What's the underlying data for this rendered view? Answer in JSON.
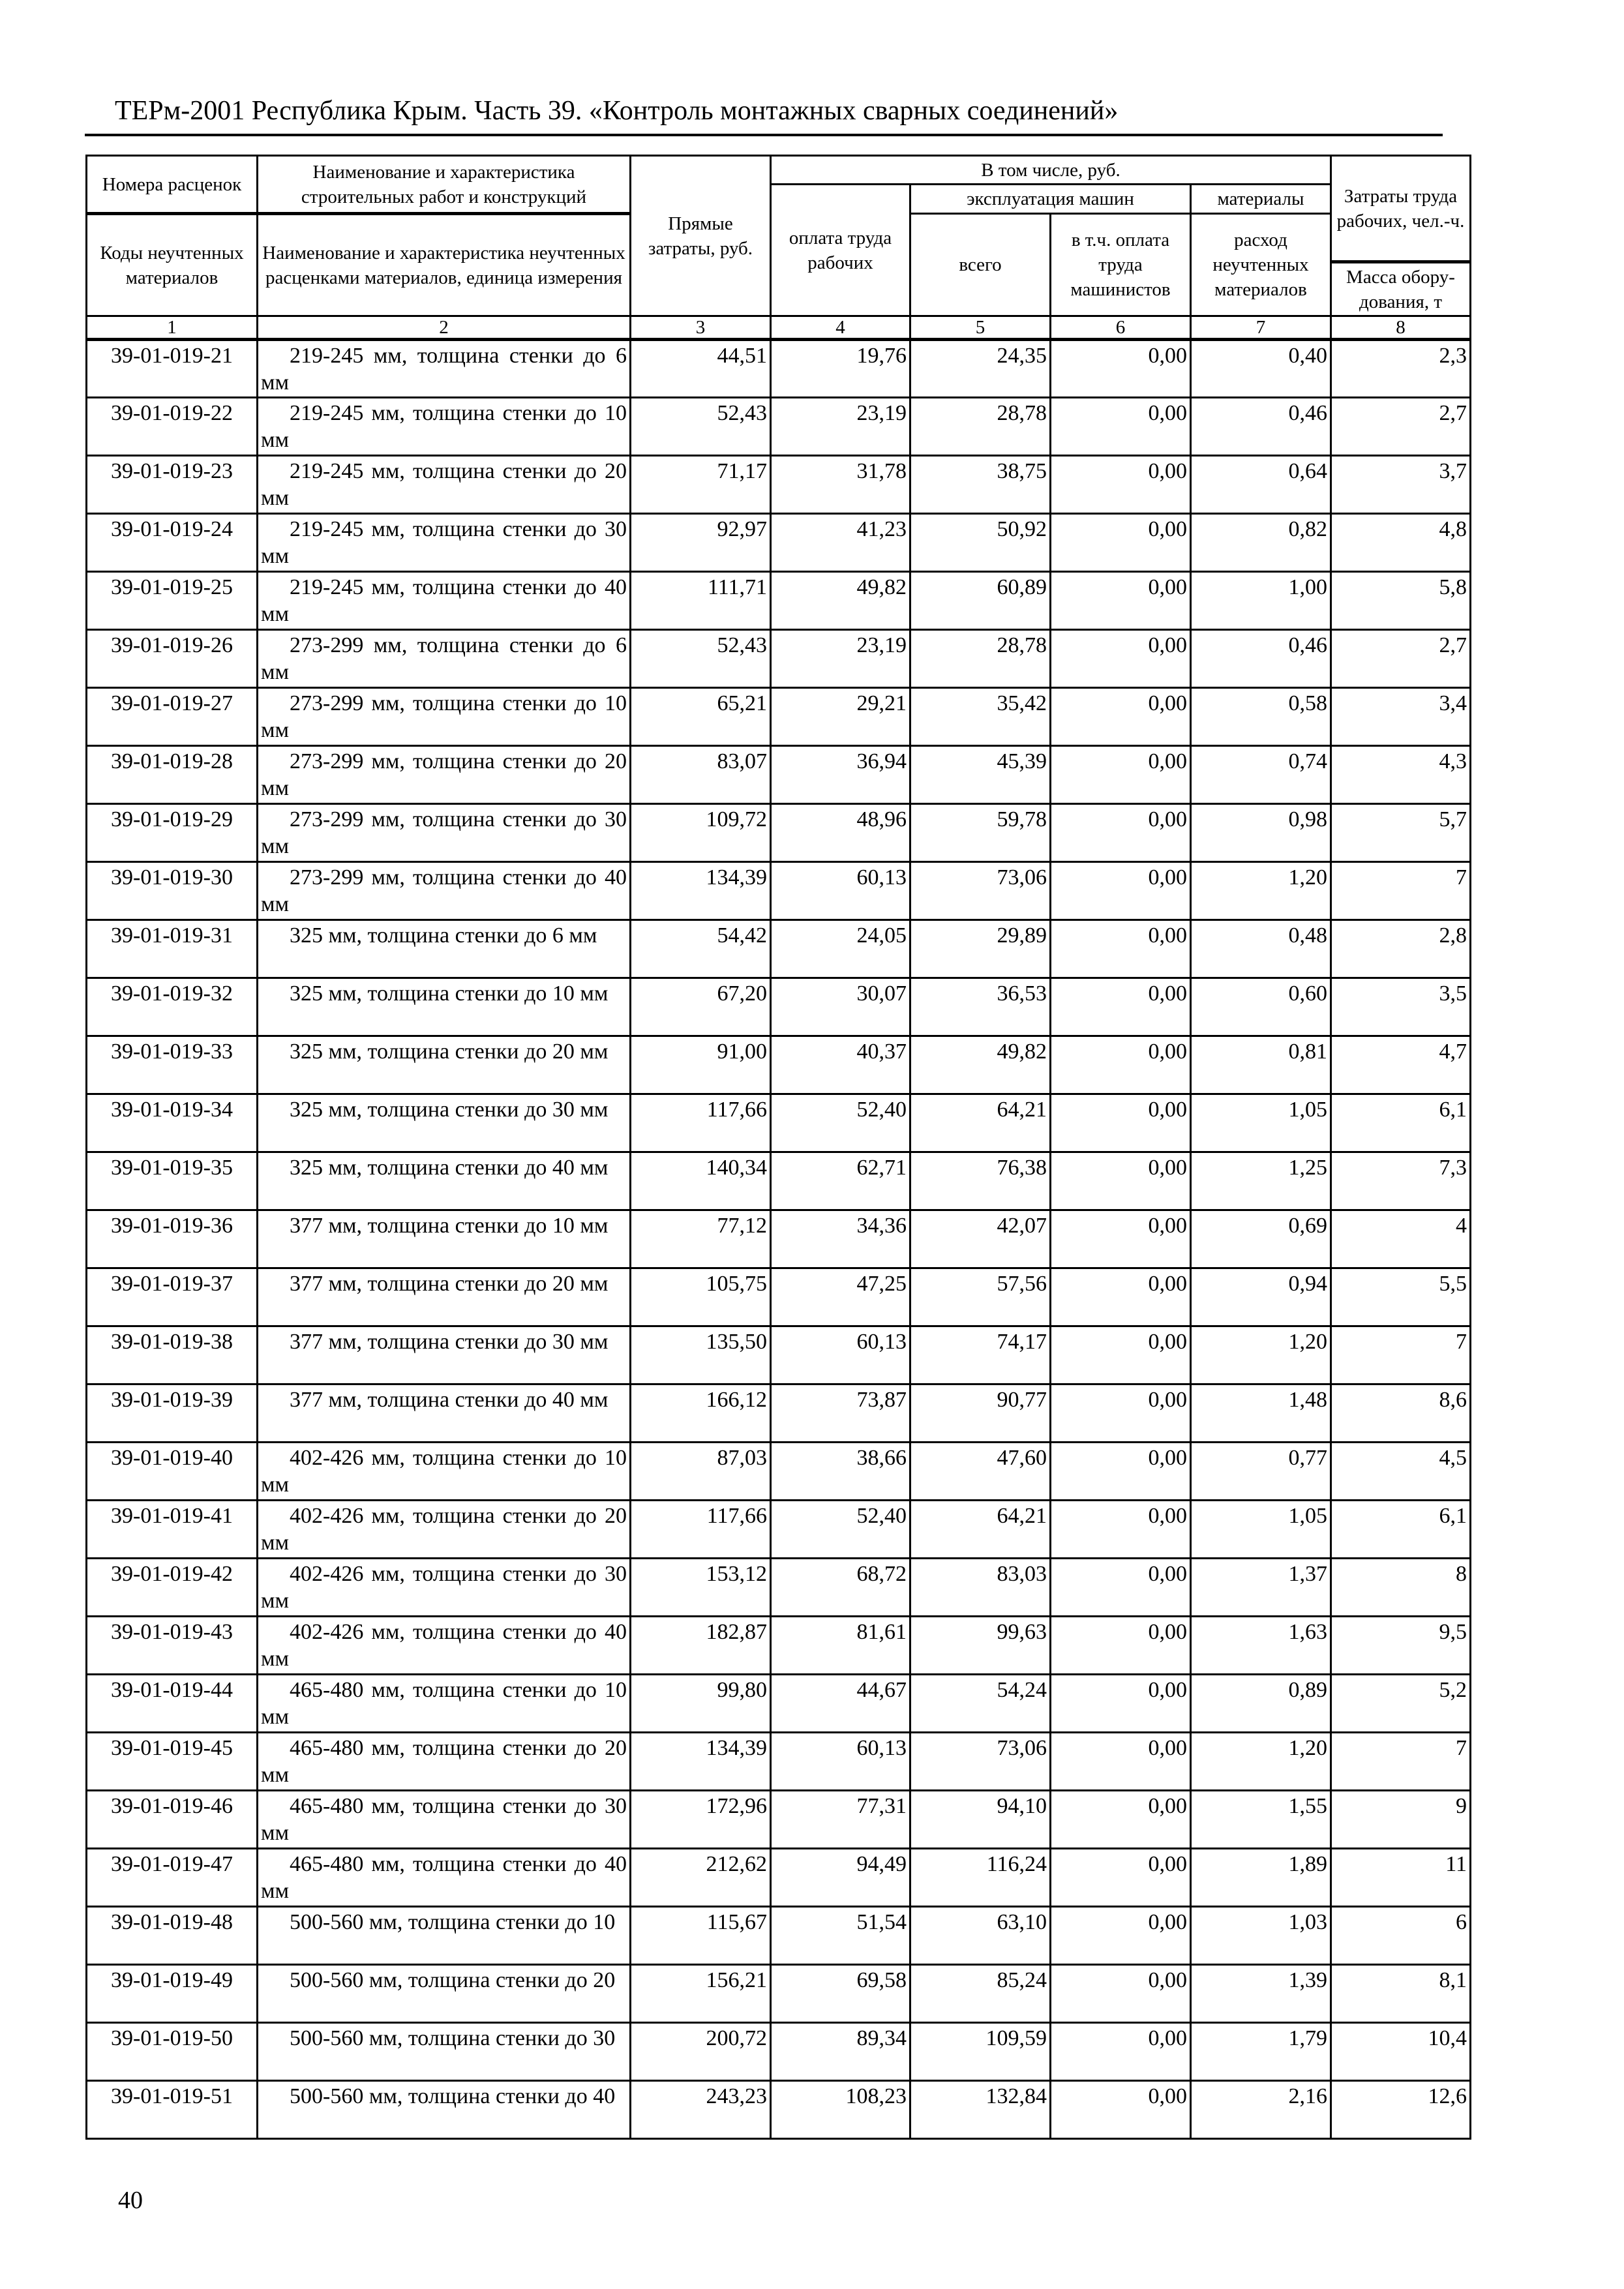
{
  "header": {
    "title": "ТЕРм-2001 Республика Крым. Часть 39. «Контроль монтажных сварных соединений»"
  },
  "table": {
    "head": {
      "c1_top": "Номера расценок",
      "c2_top": "Наименование и характеристика строительных работ и конструкций",
      "c3": "Прямые затраты, руб.",
      "group": "В том числе, руб.",
      "c4": "оплата труда рабочих",
      "machines": "эксплуатация машин",
      "materials": "материалы",
      "c8_top": "Затраты труда рабочих, чел.-ч.",
      "c1_bottom": "Коды неучтенных материалов",
      "c2_bottom": "Наименование и характеристика неучтенных расценками материалов, единица измерения",
      "c5": "всего",
      "c6": "в т.ч. оплата труда машинистов",
      "c7": "расход неучтенных материалов",
      "c8_bottom": "Масса обору-дования, т",
      "numbers": [
        "1",
        "2",
        "3",
        "4",
        "5",
        "6",
        "7",
        "8"
      ]
    },
    "rows": [
      [
        "39-01-019-21",
        "219-245 мм, толщина стенки до 6 мм",
        "44,51",
        "19,76",
        "24,35",
        "0,00",
        "0,40",
        "2,3"
      ],
      [
        "39-01-019-22",
        "219-245 мм, толщина стенки до 10 мм",
        "52,43",
        "23,19",
        "28,78",
        "0,00",
        "0,46",
        "2,7"
      ],
      [
        "39-01-019-23",
        "219-245 мм, толщина стенки до 20 мм",
        "71,17",
        "31,78",
        "38,75",
        "0,00",
        "0,64",
        "3,7"
      ],
      [
        "39-01-019-24",
        "219-245 мм, толщина стенки до 30 мм",
        "92,97",
        "41,23",
        "50,92",
        "0,00",
        "0,82",
        "4,8"
      ],
      [
        "39-01-019-25",
        "219-245 мм, толщина стенки до 40 мм",
        "111,71",
        "49,82",
        "60,89",
        "0,00",
        "1,00",
        "5,8"
      ],
      [
        "39-01-019-26",
        "273-299 мм, толщина стенки до 6 мм",
        "52,43",
        "23,19",
        "28,78",
        "0,00",
        "0,46",
        "2,7"
      ],
      [
        "39-01-019-27",
        "273-299 мм, толщина стенки до 10 мм",
        "65,21",
        "29,21",
        "35,42",
        "0,00",
        "0,58",
        "3,4"
      ],
      [
        "39-01-019-28",
        "273-299 мм, толщина стенки до 20 мм",
        "83,07",
        "36,94",
        "45,39",
        "0,00",
        "0,74",
        "4,3"
      ],
      [
        "39-01-019-29",
        "273-299 мм, толщина стенки до 30 мм",
        "109,72",
        "48,96",
        "59,78",
        "0,00",
        "0,98",
        "5,7"
      ],
      [
        "39-01-019-30",
        "273-299 мм, толщина стенки до 40 мм",
        "134,39",
        "60,13",
        "73,06",
        "0,00",
        "1,20",
        "7"
      ],
      [
        "39-01-019-31",
        "325 мм, толщина стенки до 6 мм",
        "54,42",
        "24,05",
        "29,89",
        "0,00",
        "0,48",
        "2,8"
      ],
      [
        "39-01-019-32",
        "325 мм, толщина стенки до 10 мм",
        "67,20",
        "30,07",
        "36,53",
        "0,00",
        "0,60",
        "3,5"
      ],
      [
        "39-01-019-33",
        "325 мм, толщина стенки до 20 мм",
        "91,00",
        "40,37",
        "49,82",
        "0,00",
        "0,81",
        "4,7"
      ],
      [
        "39-01-019-34",
        "325 мм, толщина стенки до 30 мм",
        "117,66",
        "52,40",
        "64,21",
        "0,00",
        "1,05",
        "6,1"
      ],
      [
        "39-01-019-35",
        "325 мм, толщина стенки до 40 мм",
        "140,34",
        "62,71",
        "76,38",
        "0,00",
        "1,25",
        "7,3"
      ],
      [
        "39-01-019-36",
        "377 мм, толщина стенки до 10 мм",
        "77,12",
        "34,36",
        "42,07",
        "0,00",
        "0,69",
        "4"
      ],
      [
        "39-01-019-37",
        "377 мм, толщина стенки до 20 мм",
        "105,75",
        "47,25",
        "57,56",
        "0,00",
        "0,94",
        "5,5"
      ],
      [
        "39-01-019-38",
        "377 мм, толщина стенки до 30 мм",
        "135,50",
        "60,13",
        "74,17",
        "0,00",
        "1,20",
        "7"
      ],
      [
        "39-01-019-39",
        "377 мм, толщина стенки до 40 мм",
        "166,12",
        "73,87",
        "90,77",
        "0,00",
        "1,48",
        "8,6"
      ],
      [
        "39-01-019-40",
        "402-426 мм, толщина стенки до 10 мм",
        "87,03",
        "38,66",
        "47,60",
        "0,00",
        "0,77",
        "4,5"
      ],
      [
        "39-01-019-41",
        "402-426 мм, толщина стенки до 20 мм",
        "117,66",
        "52,40",
        "64,21",
        "0,00",
        "1,05",
        "6,1"
      ],
      [
        "39-01-019-42",
        "402-426 мм, толщина стенки до 30 мм",
        "153,12",
        "68,72",
        "83,03",
        "0,00",
        "1,37",
        "8"
      ],
      [
        "39-01-019-43",
        "402-426 мм, толщина стенки до 40 мм",
        "182,87",
        "81,61",
        "99,63",
        "0,00",
        "1,63",
        "9,5"
      ],
      [
        "39-01-019-44",
        "465-480 мм, толщина стенки до 10 мм",
        "99,80",
        "44,67",
        "54,24",
        "0,00",
        "0,89",
        "5,2"
      ],
      [
        "39-01-019-45",
        "465-480 мм, толщина стенки до 20 мм",
        "134,39",
        "60,13",
        "73,06",
        "0,00",
        "1,20",
        "7"
      ],
      [
        "39-01-019-46",
        "465-480 мм, толщина стенки до 30 мм",
        "172,96",
        "77,31",
        "94,10",
        "0,00",
        "1,55",
        "9"
      ],
      [
        "39-01-019-47",
        "465-480 мм, толщина стенки до 40 мм",
        "212,62",
        "94,49",
        "116,24",
        "0,00",
        "1,89",
        "11"
      ],
      [
        "39-01-019-48",
        "500-560 мм, толщина стенки до 10",
        "115,67",
        "51,54",
        "63,10",
        "0,00",
        "1,03",
        "6"
      ],
      [
        "39-01-019-49",
        "500-560 мм, толщина стенки до 20",
        "156,21",
        "69,58",
        "85,24",
        "0,00",
        "1,39",
        "8,1"
      ],
      [
        "39-01-019-50",
        "500-560 мм, толщина стенки до 30",
        "200,72",
        "89,34",
        "109,59",
        "0,00",
        "1,79",
        "10,4"
      ],
      [
        "39-01-019-51",
        "500-560 мм, толщина стенки до 40",
        "243,23",
        "108,23",
        "132,84",
        "0,00",
        "2,16",
        "12,6"
      ]
    ]
  },
  "footer": {
    "page_number": "40"
  }
}
